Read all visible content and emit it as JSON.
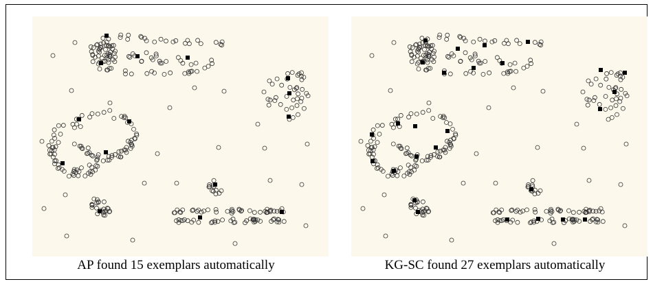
{
  "figure": {
    "background_color": "#fcf8ec",
    "point_color": "#333333",
    "exemplar_color": "#000000"
  },
  "panels": [
    {
      "id": "left",
      "caption": "AP found 15 exemplars automatically",
      "exemplar_count": 15
    },
    {
      "id": "right",
      "caption": "KG-SC found 27 exemplars automatically",
      "exemplar_count": 27
    }
  ]
}
